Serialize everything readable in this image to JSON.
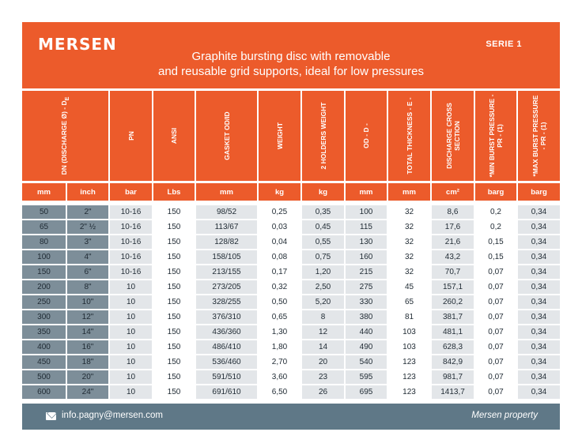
{
  "header": {
    "logo": "MERSEN",
    "serie": "SERIE 1",
    "title_line1": "Graphite bursting disc with removable",
    "title_line2": "and reusable grid supports, ideal for low pressures"
  },
  "columns": [
    {
      "label": "DN (DISCHARGE Ø) - D",
      "sub": "E",
      "unit": "mm"
    },
    {
      "label": "",
      "sub": "",
      "unit": "inch"
    },
    {
      "label": "PN",
      "sub": "",
      "unit": "bar"
    },
    {
      "label": "ANSI",
      "sub": "",
      "unit": "Lbs"
    },
    {
      "label": "GASKET OD/ID",
      "sub": "",
      "unit": "mm"
    },
    {
      "label": "WEIGHT",
      "sub": "",
      "unit": "kg"
    },
    {
      "label": "2 HOLDERS WEIGHT",
      "sub": "",
      "unit": "kg"
    },
    {
      "label": "OD - D -",
      "sub": "",
      "unit": "mm"
    },
    {
      "label": "TOTAL THICKNESS - E -",
      "sub": "",
      "unit": "mm"
    },
    {
      "label": "DISCHARGE CROSS SECTION",
      "sub": "",
      "unit": "cm²"
    },
    {
      "label": "*MIN BURST PRESSURE - PR - (1)",
      "sub": "",
      "unit": "barg"
    },
    {
      "label": "*MAX BURST PRESSURE - PR - (1)",
      "sub": "",
      "unit": "barg"
    }
  ],
  "rows": [
    [
      "50",
      "2\"",
      "10-16",
      "150",
      "98/52",
      "0,25",
      "0,35",
      "100",
      "32",
      "8,6",
      "0,2",
      "0,34"
    ],
    [
      "65",
      "2\" ½",
      "10-16",
      "150",
      "113/67",
      "0,03",
      "0,45",
      "115",
      "32",
      "17,6",
      "0,2",
      "0,34"
    ],
    [
      "80",
      "3\"",
      "10-16",
      "150",
      "128/82",
      "0,04",
      "0,55",
      "130",
      "32",
      "21,6",
      "0,15",
      "0,34"
    ],
    [
      "100",
      "4\"",
      "10-16",
      "150",
      "158/105",
      "0,08",
      "0,75",
      "160",
      "32",
      "43,2",
      "0,15",
      "0,34"
    ],
    [
      "150",
      "6\"",
      "10-16",
      "150",
      "213/155",
      "0,17",
      "1,20",
      "215",
      "32",
      "70,7",
      "0,07",
      "0,34"
    ],
    [
      "200",
      "8\"",
      "10",
      "150",
      "273/205",
      "0,32",
      "2,50",
      "275",
      "45",
      "157,1",
      "0,07",
      "0,34"
    ],
    [
      "250",
      "10\"",
      "10",
      "150",
      "328/255",
      "0,50",
      "5,20",
      "330",
      "65",
      "260,2",
      "0,07",
      "0,34"
    ],
    [
      "300",
      "12\"",
      "10",
      "150",
      "376/310",
      "0,65",
      "8",
      "380",
      "81",
      "381,7",
      "0,07",
      "0,34"
    ],
    [
      "350",
      "14\"",
      "10",
      "150",
      "436/360",
      "1,30",
      "12",
      "440",
      "103",
      "481,1",
      "0,07",
      "0,34"
    ],
    [
      "400",
      "16\"",
      "10",
      "150",
      "486/410",
      "1,80",
      "14",
      "490",
      "103",
      "628,3",
      "0,07",
      "0,34"
    ],
    [
      "450",
      "18\"",
      "10",
      "150",
      "536/460",
      "2,70",
      "20",
      "540",
      "123",
      "842,9",
      "0,07",
      "0,34"
    ],
    [
      "500",
      "20\"",
      "10",
      "150",
      "591/510",
      "3,60",
      "23",
      "595",
      "123",
      "981,7",
      "0,07",
      "0,34"
    ],
    [
      "600",
      "24\"",
      "10",
      "150",
      "691/610",
      "6,50",
      "26",
      "695",
      "123",
      "1413,7",
      "0,07",
      "0,34"
    ]
  ],
  "footer": {
    "email": "info.pagny@mersen.com",
    "property": "Mersen property"
  },
  "colors": {
    "orange": "#ec5b2b",
    "slate": "#7d8e99",
    "light": "#e3e6e9",
    "footer": "#5f7887"
  },
  "icons": [
    "mail-icon"
  ]
}
